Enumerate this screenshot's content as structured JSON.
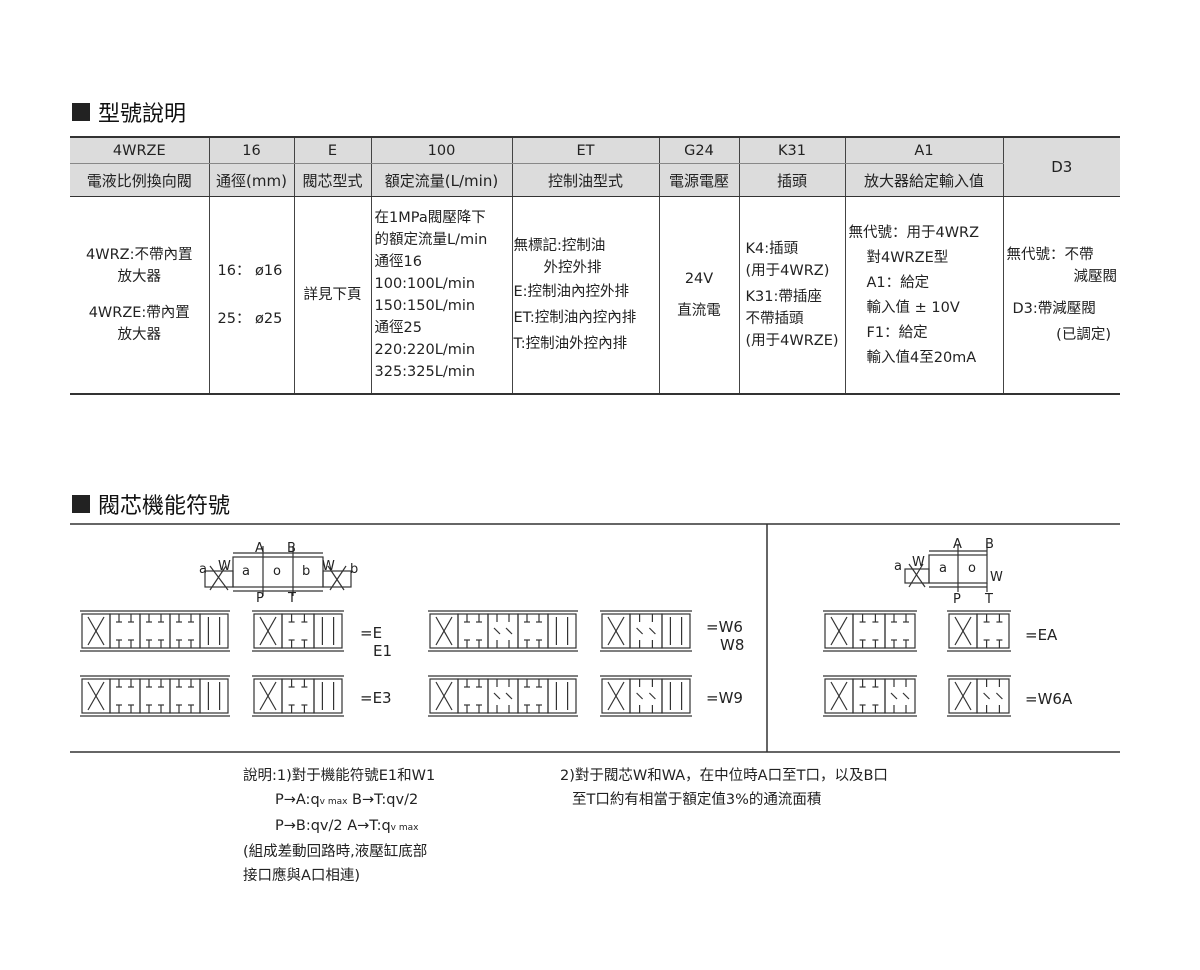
{
  "section1_title": "型號說明",
  "section2_title": "閥芯機能符號",
  "table": {
    "codes": [
      "4WRZE",
      "16",
      "E",
      "100",
      "ET",
      "G24",
      "K31",
      "A1",
      "D3"
    ],
    "headers": [
      "電液比例換向閥",
      "通徑(mm)",
      "閥芯型式",
      "額定流量(L/min)",
      "控制油型式",
      "電源電壓",
      "插頭",
      "放大器給定輸入值"
    ],
    "col1": [
      "4WRZ:不帶內置",
      "放大器",
      "4WRZE:帶內置",
      "放大器"
    ],
    "col2": [
      "16： ø16",
      "25： ø25"
    ],
    "col3": "詳見下頁",
    "col4": [
      "在1MPa閥壓降下",
      "的額定流量L/min",
      "通徑16",
      "100:100L/min",
      "150:150L/min",
      "通徑25",
      "220:220L/min",
      "325:325L/min"
    ],
    "col5": [
      "無標記:控制油",
      "外控外排",
      "E:控制油內控外排",
      "ET:控制油內控內排",
      "T:控制油外控內排"
    ],
    "col6": [
      "24V",
      "直流電"
    ],
    "col7": [
      "K4:插頭",
      "(用于4WRZ)",
      "K31:帶插座",
      "不帶插頭",
      "(用于4WRZE)"
    ],
    "col8": [
      "無代號：用于4WRZ",
      "對4WRZE型",
      "A1：給定",
      "輸入值 ± 10V",
      "F1：給定",
      "輸入值4至20mA"
    ],
    "col9": [
      "無代號：不帶",
      "減壓閥",
      "D3:帶減壓閥",
      "(已調定)"
    ]
  },
  "schematic": {
    "ports": [
      "A",
      "B",
      "P",
      "T"
    ],
    "positions": [
      "a",
      "o",
      "b"
    ],
    "springs": [
      "W",
      "W"
    ],
    "solenoids": [
      "a",
      "b"
    ]
  },
  "symbol_labels": {
    "E": "=E",
    "E1": "E1",
    "E3": "=E3",
    "W6": "=W6",
    "W8": "W8",
    "W9": "=W9",
    "EA": "=EA",
    "W6A": "=W6A"
  },
  "notes": {
    "n1_line1": "說明:1)對于機能符號E1和W1",
    "n1_line2a": "P→A:q",
    "n1_line2sub": "v max",
    "n1_line2b": " B→T:qv/2",
    "n1_line3a": "P→B:qv/2  A→T:q",
    "n1_line3sub": "v max",
    "n1_line4": "(組成差動回路時,液壓缸底部",
    "n1_line5": "接口應與A口相連)",
    "n2_line1": "2)對于閥芯W和WA，在中位時A口至T口，以及B口",
    "n2_line2": "至T口約有相當于額定值3%的通流面積"
  }
}
